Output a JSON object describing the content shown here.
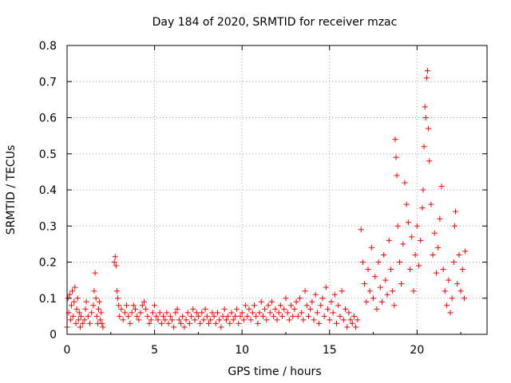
{
  "chart_data": {
    "type": "scatter",
    "title": "Day 184 of 2020, SRMTID for receiver mzac",
    "xlabel": "GPS time / hours",
    "ylabel": "SRMTID / TECUs",
    "xlim": [
      0,
      24
    ],
    "ylim": [
      0,
      0.8
    ],
    "xticks": [
      {
        "value": 0,
        "label": "0"
      },
      {
        "value": 5,
        "label": "5"
      },
      {
        "value": 10,
        "label": "10"
      },
      {
        "value": 15,
        "label": "15"
      },
      {
        "value": 20,
        "label": "20"
      }
    ],
    "yticks": [
      {
        "value": 0,
        "label": "0"
      },
      {
        "value": 0.1,
        "label": "0.1"
      },
      {
        "value": 0.2,
        "label": "0.2"
      },
      {
        "value": 0.3,
        "label": "0.3"
      },
      {
        "value": 0.4,
        "label": "0.4"
      },
      {
        "value": 0.5,
        "label": "0.5"
      },
      {
        "value": 0.6,
        "label": "0.6"
      },
      {
        "value": 0.7,
        "label": "0.7"
      },
      {
        "value": 0.8,
        "label": "0.8"
      }
    ],
    "grid": true,
    "marker": "plus",
    "color": "#ff0000",
    "series": [
      {
        "name": "SRMTID",
        "points": [
          [
            0.0,
            0.02
          ],
          [
            0.05,
            0.1
          ],
          [
            0.1,
            0.06
          ],
          [
            0.15,
            0.11
          ],
          [
            0.2,
            0.04
          ],
          [
            0.25,
            0.08
          ],
          [
            0.3,
            0.12
          ],
          [
            0.35,
            0.05
          ],
          [
            0.4,
            0.09
          ],
          [
            0.45,
            0.13
          ],
          [
            0.5,
            0.03
          ],
          [
            0.55,
            0.07
          ],
          [
            0.6,
            0.1
          ],
          [
            0.65,
            0.04
          ],
          [
            0.7,
            0.06
          ],
          [
            0.75,
            0.02
          ],
          [
            0.8,
            0.05
          ],
          [
            0.9,
            0.03
          ],
          [
            1.0,
            0.04
          ],
          [
            1.05,
            0.07
          ],
          [
            1.1,
            0.09
          ],
          [
            1.2,
            0.05
          ],
          [
            1.3,
            0.03
          ],
          [
            1.4,
            0.06
          ],
          [
            1.5,
            0.08
          ],
          [
            1.55,
            0.12
          ],
          [
            1.6,
            0.17
          ],
          [
            1.65,
            0.1
          ],
          [
            1.7,
            0.05
          ],
          [
            1.75,
            0.03
          ],
          [
            1.8,
            0.07
          ],
          [
            1.85,
            0.09
          ],
          [
            1.9,
            0.04
          ],
          [
            1.95,
            0.06
          ],
          [
            2.0,
            0.03
          ],
          [
            2.05,
            0.02
          ],
          [
            2.7,
            0.2
          ],
          [
            2.75,
            0.215
          ],
          [
            2.8,
            0.19
          ],
          [
            2.85,
            0.12
          ],
          [
            2.9,
            0.1
          ],
          [
            2.95,
            0.08
          ],
          [
            3.0,
            0.05
          ],
          [
            3.1,
            0.07
          ],
          [
            3.2,
            0.04
          ],
          [
            3.3,
            0.06
          ],
          [
            3.4,
            0.08
          ],
          [
            3.5,
            0.05
          ],
          [
            3.6,
            0.03
          ],
          [
            3.7,
            0.06
          ],
          [
            3.8,
            0.08
          ],
          [
            3.9,
            0.07
          ],
          [
            4.0,
            0.05
          ],
          [
            4.1,
            0.04
          ],
          [
            4.2,
            0.06
          ],
          [
            4.3,
            0.08
          ],
          [
            4.4,
            0.09
          ],
          [
            4.5,
            0.07
          ],
          [
            4.6,
            0.05
          ],
          [
            4.7,
            0.03
          ],
          [
            4.8,
            0.04
          ],
          [
            4.9,
            0.06
          ],
          [
            5.0,
            0.08
          ],
          [
            5.1,
            0.05
          ],
          [
            5.2,
            0.04
          ],
          [
            5.3,
            0.06
          ],
          [
            5.4,
            0.03
          ],
          [
            5.5,
            0.05
          ],
          [
            5.6,
            0.04
          ],
          [
            5.7,
            0.06
          ],
          [
            5.8,
            0.03
          ],
          [
            5.9,
            0.05
          ],
          [
            6.0,
            0.04
          ],
          [
            6.1,
            0.02
          ],
          [
            6.2,
            0.06
          ],
          [
            6.3,
            0.07
          ],
          [
            6.4,
            0.04
          ],
          [
            6.5,
            0.03
          ],
          [
            6.6,
            0.05
          ],
          [
            6.7,
            0.02
          ],
          [
            6.8,
            0.04
          ],
          [
            6.9,
            0.06
          ],
          [
            7.0,
            0.03
          ],
          [
            7.1,
            0.05
          ],
          [
            7.2,
            0.07
          ],
          [
            7.3,
            0.04
          ],
          [
            7.4,
            0.06
          ],
          [
            7.5,
            0.05
          ],
          [
            7.6,
            0.03
          ],
          [
            7.7,
            0.06
          ],
          [
            7.8,
            0.04
          ],
          [
            7.9,
            0.07
          ],
          [
            8.0,
            0.05
          ],
          [
            8.1,
            0.03
          ],
          [
            8.2,
            0.04
          ],
          [
            8.3,
            0.06
          ],
          [
            8.4,
            0.05
          ],
          [
            8.5,
            0.03
          ],
          [
            8.6,
            0.06
          ],
          [
            8.7,
            0.04
          ],
          [
            8.8,
            0.02
          ],
          [
            8.9,
            0.05
          ],
          [
            9.0,
            0.07
          ],
          [
            9.1,
            0.04
          ],
          [
            9.2,
            0.05
          ],
          [
            9.3,
            0.03
          ],
          [
            9.4,
            0.06
          ],
          [
            9.5,
            0.04
          ],
          [
            9.6,
            0.05
          ],
          [
            9.7,
            0.07
          ],
          [
            9.8,
            0.03
          ],
          [
            9.9,
            0.05
          ],
          [
            10.0,
            0.06
          ],
          [
            10.1,
            0.04
          ],
          [
            10.2,
            0.08
          ],
          [
            10.3,
            0.05
          ],
          [
            10.4,
            0.07
          ],
          [
            10.5,
            0.04
          ],
          [
            10.6,
            0.06
          ],
          [
            10.7,
            0.08
          ],
          [
            10.8,
            0.05
          ],
          [
            10.9,
            0.03
          ],
          [
            11.0,
            0.06
          ],
          [
            11.1,
            0.09
          ],
          [
            11.2,
            0.05
          ],
          [
            11.3,
            0.07
          ],
          [
            11.4,
            0.04
          ],
          [
            11.5,
            0.08
          ],
          [
            11.6,
            0.06
          ],
          [
            11.7,
            0.09
          ],
          [
            11.8,
            0.05
          ],
          [
            11.9,
            0.07
          ],
          [
            12.0,
            0.04
          ],
          [
            12.1,
            0.06
          ],
          [
            12.2,
            0.08
          ],
          [
            12.3,
            0.05
          ],
          [
            12.4,
            0.07
          ],
          [
            12.5,
            0.1
          ],
          [
            12.6,
            0.06
          ],
          [
            12.7,
            0.04
          ],
          [
            12.8,
            0.08
          ],
          [
            12.9,
            0.05
          ],
          [
            13.0,
            0.07
          ],
          [
            13.1,
            0.09
          ],
          [
            13.2,
            0.05
          ],
          [
            13.3,
            0.1
          ],
          [
            13.4,
            0.06
          ],
          [
            13.5,
            0.04
          ],
          [
            13.6,
            0.12
          ],
          [
            13.7,
            0.08
          ],
          [
            13.8,
            0.05
          ],
          [
            13.9,
            0.07
          ],
          [
            14.0,
            0.09
          ],
          [
            14.1,
            0.04
          ],
          [
            14.2,
            0.11
          ],
          [
            14.3,
            0.06
          ],
          [
            14.4,
            0.03
          ],
          [
            14.5,
            0.08
          ],
          [
            14.6,
            0.1
          ],
          [
            14.7,
            0.05
          ],
          [
            14.8,
            0.13
          ],
          [
            14.9,
            0.07
          ],
          [
            15.0,
            0.04
          ],
          [
            15.1,
            0.09
          ],
          [
            15.2,
            0.06
          ],
          [
            15.3,
            0.11
          ],
          [
            15.4,
            0.03
          ],
          [
            15.5,
            0.08
          ],
          [
            15.6,
            0.05
          ],
          [
            15.7,
            0.12
          ],
          [
            15.8,
            0.04
          ],
          [
            15.9,
            0.07
          ],
          [
            16.0,
            0.02
          ],
          [
            16.1,
            0.06
          ],
          [
            16.2,
            0.04
          ],
          [
            16.3,
            0.03
          ],
          [
            16.4,
            0.05
          ],
          [
            16.5,
            0.02
          ],
          [
            16.6,
            0.04
          ],
          [
            16.8,
            0.29
          ],
          [
            16.9,
            0.2
          ],
          [
            17.0,
            0.14
          ],
          [
            17.1,
            0.09
          ],
          [
            17.2,
            0.18
          ],
          [
            17.3,
            0.12
          ],
          [
            17.4,
            0.24
          ],
          [
            17.5,
            0.1
          ],
          [
            17.6,
            0.16
          ],
          [
            17.7,
            0.07
          ],
          [
            17.8,
            0.2
          ],
          [
            17.9,
            0.13
          ],
          [
            18.0,
            0.09
          ],
          [
            18.1,
            0.22
          ],
          [
            18.2,
            0.15
          ],
          [
            18.3,
            0.11
          ],
          [
            18.4,
            0.26
          ],
          [
            18.5,
            0.18
          ],
          [
            18.6,
            0.12
          ],
          [
            18.7,
            0.08
          ],
          [
            18.75,
            0.54
          ],
          [
            18.8,
            0.49
          ],
          [
            18.85,
            0.44
          ],
          [
            18.9,
            0.3
          ],
          [
            19.0,
            0.2
          ],
          [
            19.1,
            0.14
          ],
          [
            19.2,
            0.25
          ],
          [
            19.3,
            0.42
          ],
          [
            19.4,
            0.36
          ],
          [
            19.5,
            0.31
          ],
          [
            19.6,
            0.18
          ],
          [
            19.7,
            0.27
          ],
          [
            19.8,
            0.12
          ],
          [
            19.9,
            0.22
          ],
          [
            20.0,
            0.3
          ],
          [
            20.1,
            0.19
          ],
          [
            20.2,
            0.26
          ],
          [
            20.3,
            0.35
          ],
          [
            20.35,
            0.4
          ],
          [
            20.4,
            0.52
          ],
          [
            20.45,
            0.63
          ],
          [
            20.5,
            0.6
          ],
          [
            20.55,
            0.71
          ],
          [
            20.6,
            0.73
          ],
          [
            20.65,
            0.57
          ],
          [
            20.7,
            0.48
          ],
          [
            20.8,
            0.36
          ],
          [
            20.9,
            0.22
          ],
          [
            21.0,
            0.28
          ],
          [
            21.1,
            0.17
          ],
          [
            21.2,
            0.24
          ],
          [
            21.3,
            0.32
          ],
          [
            21.4,
            0.41
          ],
          [
            21.5,
            0.18
          ],
          [
            21.6,
            0.12
          ],
          [
            21.7,
            0.08
          ],
          [
            21.8,
            0.15
          ],
          [
            21.9,
            0.06
          ],
          [
            22.0,
            0.1
          ],
          [
            22.1,
            0.2
          ],
          [
            22.15,
            0.3
          ],
          [
            22.2,
            0.34
          ],
          [
            22.3,
            0.14
          ],
          [
            22.4,
            0.22
          ],
          [
            22.5,
            0.12
          ],
          [
            22.6,
            0.18
          ],
          [
            22.7,
            0.1
          ],
          [
            22.75,
            0.23
          ]
        ]
      }
    ]
  }
}
